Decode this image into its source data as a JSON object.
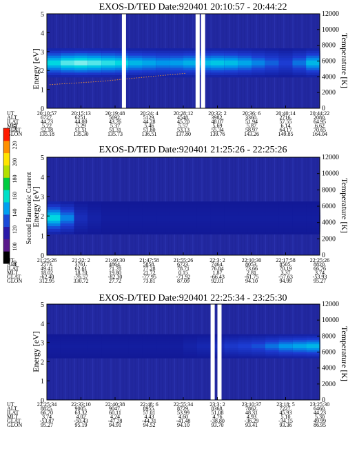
{
  "chart_data": [
    {
      "type": "heatmap",
      "title": "EXOS-D/TED",
      "date": "Date:920401",
      "time_range": "20:10:57 - 20:44:22",
      "ylabel": "Energy [eV]",
      "ylabel_right": "Temperature [K]",
      "ylim": [
        0,
        5
      ],
      "ylim_right": [
        0,
        12000
      ],
      "yticks": [
        "0",
        "1",
        "2",
        "3",
        "4",
        "5"
      ],
      "yticks_right": [
        "0",
        "2000",
        "4000",
        "6000",
        "8000",
        "10000",
        "12000"
      ],
      "band": {
        "energy_center": 2.4,
        "energy_halfwidth": 0.55,
        "intensity_profile": [
          0.8,
          0.9,
          0.95,
          0.9,
          0.85,
          0.8,
          0.7,
          0.65,
          0.6,
          0.62,
          0.68,
          0.72,
          0.75,
          0.72,
          0.65,
          0.55,
          0.45,
          0.35,
          0.5,
          0.7
        ]
      },
      "data_gaps_x": [
        0.275,
        0.545,
        0.565
      ],
      "temperature_trace": [
        3000,
        3100,
        3200,
        3300,
        3400,
        3550,
        3700,
        3850,
        4000,
        4150,
        4300,
        4450
      ],
      "rows": [
        {
          "label": "UT",
          "values": [
            "20:10:57",
            "20:15:13",
            "20:19:48",
            "20:24: 4",
            "20:28:12",
            "20:32: 2",
            "20:36: 6",
            "20:40:14",
            "20:44:22"
          ]
        },
        {
          "label": "ALT",
          "values": [
            "6727.",
            "6251.",
            "5692.",
            "5129.",
            "4548.",
            "3982.",
            "3360.",
            "2716.",
            "2080."
          ]
        },
        {
          "label": "ILAT",
          "values": [
            "44.73",
            "44.00",
            "43.76",
            "44.28",
            "45.70",
            "48.07",
            "51.94",
            "57.55",
            "64.95"
          ]
        },
        {
          "label": "MLT",
          "values": [
            "5.22",
            "5.29",
            "5.37",
            "5.46",
            "5.57",
            "5.69",
            "5.87",
            "6.14",
            "6.62"
          ]
        },
        {
          "label": "GLAT",
          "values": [
            "52.18",
            "51.51",
            "51.31",
            "51.80",
            "53.13",
            "55.34",
            "58.97",
            "64.17",
            "70.65"
          ]
        },
        {
          "label": "GLON",
          "values": [
            "135.18",
            "135.30",
            "135.73",
            "136.51",
            "137.80",
            "139.76",
            "143.26",
            "149.85",
            "164.04"
          ]
        }
      ]
    },
    {
      "type": "heatmap",
      "title": "EXOS-D/TED",
      "date": "Date:920401",
      "time_range": "21:25:26 - 22:25:26",
      "ylabel": "Energy [eV]",
      "ylabel_right": "Temperature [K]",
      "ylim": [
        0,
        5
      ],
      "ylim_right": [
        0,
        12000
      ],
      "yticks": [
        "0",
        "1",
        "2",
        "3",
        "4",
        "5"
      ],
      "yticks_right": [
        "0",
        "2000",
        "4000",
        "6000",
        "8000",
        "10000",
        "12000"
      ],
      "band": {
        "energy_center": 1.9,
        "energy_halfwidth": 0.6,
        "intensity_profile": [
          0.8,
          0.55,
          0.2,
          0.1,
          0.05,
          0.05,
          0.05,
          0.05,
          0.05,
          0.05,
          0.05,
          0.05,
          0.05,
          0.05,
          0.05,
          0.05,
          0.05,
          0.05,
          0.05,
          0.05
        ]
      },
      "data_gaps_x": [],
      "temperature_trace": [],
      "rows": [
        {
          "label": "UT",
          "values": [
            "21:25:26",
            "21:32: 2",
            "21:40:30",
            "21:47:58",
            "21:55:26",
            "22:3: 2",
            "22:10:30",
            "22:17:58",
            "22:25:26"
          ]
        },
        {
          "label": "ALT",
          "values": [
            "2573.",
            "3761.",
            "4864.",
            "5858.",
            "6723.",
            "7464.",
            "8053.",
            "8505.",
            "8820."
          ]
        },
        {
          "label": "ILAT",
          "values": [
            "49.41",
            "62.61",
            "71.78",
            "77.28",
            "78.71",
            "76.84",
            "73.66",
            "70.19",
            "66.76"
          ]
        },
        {
          "label": "MLT",
          "values": [
            "18.02",
            "18.70",
            "19.80",
            "21.72",
            "0.15",
            "1.87",
            "2.81",
            "3.37",
            "3.74"
          ]
        },
        {
          "label": "GLAT",
          "values": [
            "-62.40",
            "-76.57",
            "-82.30",
            "-77.95",
            "-71.92",
            "-66.43",
            "-61.75",
            "-57.63",
            "-53.93"
          ]
        },
        {
          "label": "GLON",
          "values": [
            "312.95",
            "330.72",
            "27.72",
            "73.81",
            "87.09",
            "92.01",
            "94.10",
            "94.99",
            "95.27"
          ]
        }
      ]
    },
    {
      "type": "heatmap",
      "title": "EXOS-D/TED",
      "date": "Date:920401",
      "time_range": "22:25:34 - 23:25:30",
      "ylabel": "Energy [eV]",
      "ylabel_right": "Temperature [K]",
      "ylim": [
        0,
        5
      ],
      "ylim_right": [
        0,
        12000
      ],
      "yticks": [
        "0",
        "1",
        "2",
        "3",
        "4",
        "5"
      ],
      "yticks_right": [
        "0",
        "2000",
        "4000",
        "6000",
        "8000",
        "10000",
        "12000"
      ],
      "band": {
        "energy_center": 2.8,
        "energy_halfwidth": 0.45,
        "intensity_profile": [
          0.05,
          0.05,
          0.05,
          0.05,
          0.05,
          0.05,
          0.05,
          0.05,
          0.05,
          0.05,
          0.1,
          0.15,
          0.2,
          0.3,
          0.35,
          0.4,
          0.5,
          0.6,
          0.65,
          0.7
        ]
      },
      "data_gaps_x": [
        0.6,
        0.625
      ],
      "temperature_trace": [],
      "rows": [
        {
          "label": "UT",
          "values": [
            "22:25:34",
            "22:33:10",
            "22:40:38",
            "22:48: 6",
            "22:55:34",
            "23:3: 2",
            "23:10:37",
            "23:18: 5",
            "23:25:30"
          ]
        },
        {
          "label": "ALT",
          "values": [
            "8825.",
            "9005.",
            "9047.",
            "8955.",
            "8729.",
            "8368.",
            "7862.",
            "7227.",
            "6460."
          ]
        },
        {
          "label": "ILAT",
          "values": [
            "66.70",
            "63.32",
            "60.11",
            "57.01",
            "53.99",
            "51.08",
            "48.31",
            "45.93",
            "44.23"
          ]
        },
        {
          "label": "MLT",
          "values": [
            "3.74",
            "4.02",
            "4.24",
            "4.43",
            "4.60",
            "4.76",
            "4.93",
            "5.10",
            "5.30"
          ]
        },
        {
          "label": "GLAT",
          "values": [
            "-53.87",
            "-50.43",
            "-47.28",
            "-44.31",
            "-41.48",
            "-38.80",
            "-36.29",
            "-34.15",
            "49.99"
          ]
        },
        {
          "label": "GLON",
          "values": [
            "95.27",
            "95.19",
            "94.91",
            "94.52",
            "94.10",
            "93.70",
            "93.41",
            "93.36",
            "86.95"
          ]
        }
      ]
    }
  ],
  "colorbar": {
    "label": "Second Harmonic Current",
    "ticks": [
      "80",
      "100",
      "120",
      "140",
      "160",
      "180",
      "200",
      "220",
      "240"
    ],
    "colors": [
      "#000000",
      "#5a1a8a",
      "#2a1aa8",
      "#1a4ad8",
      "#00a0f0",
      "#00e0c8",
      "#00cc40",
      "#b4e000",
      "#ffe400",
      "#ff9000",
      "#ff1a00"
    ]
  }
}
